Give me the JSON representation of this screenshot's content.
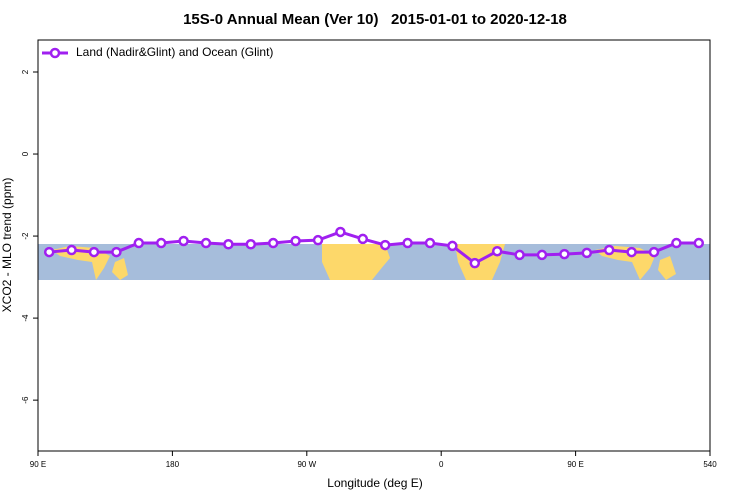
{
  "chart_data": {
    "type": "line",
    "title": "15S-0 Annual Mean (Ver 10)   2015-01-01 to 2020-12-18",
    "xlabel": "Longitude (deg E)",
    "ylabel": "XCO2 - MLO trend (ppm)",
    "x": [
      97.5,
      112.5,
      127.5,
      142.5,
      157.5,
      172.5,
      187.5,
      202.5,
      217.5,
      232.5,
      247.5,
      262.5,
      277.5,
      292.5,
      307.5,
      322.5,
      337.5,
      352.5,
      367.5,
      382.5,
      397.5,
      412.5,
      427.5,
      442.5,
      457.5,
      472.5,
      487.5,
      502.5,
      517.5,
      532.5
    ],
    "series": [
      {
        "name": "Land (Nadir&Glint) and Ocean (Glint)",
        "color": "#a020f0",
        "values": [
          -2.39,
          -2.34,
          -2.39,
          -2.39,
          -2.17,
          -2.17,
          -2.12,
          -2.17,
          -2.2,
          -2.2,
          -2.17,
          -2.12,
          -2.1,
          -1.9,
          -2.07,
          -2.22,
          -2.17,
          -2.17,
          -2.24,
          -2.66,
          -2.37,
          -2.46,
          -2.46,
          -2.44,
          -2.41,
          -2.34,
          -2.39,
          -2.39,
          -2.17,
          -2.17
        ]
      }
    ],
    "xlim": [
      90,
      540
    ],
    "xticks": [
      {
        "value": 90,
        "label": "90 E"
      },
      180,
      {
        "value": 270,
        "label": "90 W"
      },
      {
        "value": 360,
        "label": "0"
      },
      {
        "value": 450,
        "label": "90 E"
      },
      540
    ],
    "ylim": [
      -7.24,
      2.78
    ],
    "yticks": [
      -6,
      -4,
      -2,
      0,
      2
    ],
    "grid": false,
    "legend": "top-left"
  }
}
